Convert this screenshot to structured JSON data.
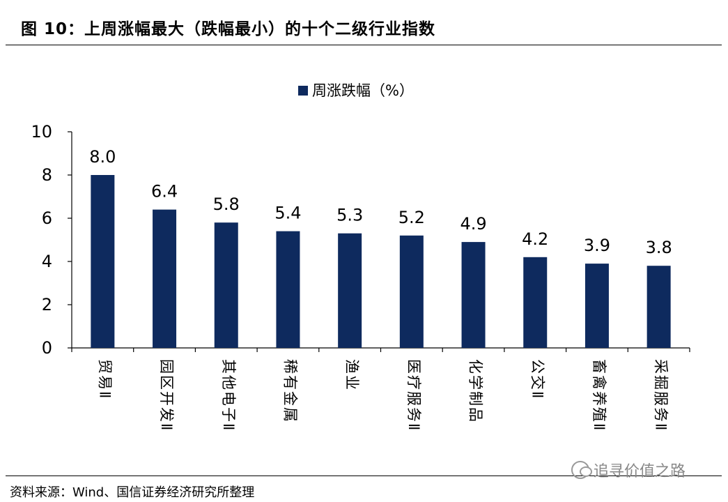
{
  "figure": {
    "title": "图  10：上周涨幅最大（跌幅最小）的十个二级行业指数",
    "source": "资料来源：Wind、国信证券经济研究所整理",
    "watermark": "追寻价值之路"
  },
  "chart_data": {
    "type": "bar",
    "categories": [
      "贸易Ⅱ",
      "园区开发Ⅱ",
      "其他电子Ⅱ",
      "稀有金属",
      "渔业",
      "医疗服务Ⅱ",
      "化学制品",
      "公交Ⅱ",
      "畜禽养殖Ⅱ",
      "采掘服务Ⅱ"
    ],
    "series": [
      {
        "name": "周涨跌幅（%）",
        "values": [
          8.0,
          6.4,
          5.8,
          5.4,
          5.3,
          5.2,
          4.9,
          4.2,
          3.9,
          3.8
        ],
        "color": "#0e2a5e"
      }
    ],
    "data_labels": [
      "8.0",
      "6.4",
      "5.8",
      "5.4",
      "5.3",
      "5.2",
      "4.9",
      "4.2",
      "3.9",
      "3.8"
    ],
    "yticks": [
      "0",
      "2",
      "4",
      "6",
      "8",
      "10"
    ],
    "ylim": [
      0,
      10
    ],
    "grid": false,
    "legend_position": "top-center",
    "title": "",
    "xlabel": "",
    "ylabel": ""
  }
}
